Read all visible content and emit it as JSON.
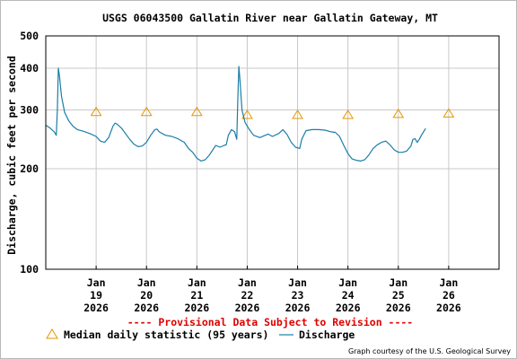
{
  "chart_data": {
    "type": "line",
    "title": "USGS 06043500 Gallatin River near Gallatin Gateway, MT",
    "ylabel": "Discharge, cubic feet per second",
    "xlabel": "",
    "y_scale": "log",
    "ylim": [
      100,
      500
    ],
    "y_ticks": [
      "500",
      "400",
      "300",
      "200",
      "100"
    ],
    "y_tick_values": [
      500,
      400,
      300,
      200,
      100
    ],
    "xlim": [
      "2026-01-18",
      "2026-01-27"
    ],
    "grid": true,
    "x_ticks": [
      {
        "date": "2026-01-19",
        "month": "Jan",
        "day": "19",
        "year": "2026"
      },
      {
        "date": "2026-01-20",
        "month": "Jan",
        "day": "20",
        "year": "2026"
      },
      {
        "date": "2026-01-21",
        "month": "Jan",
        "day": "21",
        "year": "2026"
      },
      {
        "date": "2026-01-22",
        "month": "Jan",
        "day": "22",
        "year": "2026"
      },
      {
        "date": "2026-01-23",
        "month": "Jan",
        "day": "23",
        "year": "2026"
      },
      {
        "date": "2026-01-24",
        "month": "Jan",
        "day": "24",
        "year": "2026"
      },
      {
        "date": "2026-01-25",
        "month": "Jan",
        "day": "25",
        "year": "2026"
      },
      {
        "date": "2026-01-26",
        "month": "Jan",
        "day": "26",
        "year": "2026"
      }
    ],
    "series": [
      {
        "name": "Discharge",
        "color": "#1a7ea6",
        "points": [
          [
            "2026-01-18T00:00",
            270
          ],
          [
            "2026-01-18T02:00",
            265
          ],
          [
            "2026-01-18T04:00",
            258
          ],
          [
            "2026-01-18T05:00",
            252
          ],
          [
            "2026-01-18T05:30",
            300
          ],
          [
            "2026-01-18T06:00",
            400
          ],
          [
            "2026-01-18T06:30",
            380
          ],
          [
            "2026-01-18T07:30",
            330
          ],
          [
            "2026-01-18T09:00",
            295
          ],
          [
            "2026-01-18T11:00",
            278
          ],
          [
            "2026-01-18T13:00",
            268
          ],
          [
            "2026-01-18T15:00",
            262
          ],
          [
            "2026-01-18T18:00",
            259
          ],
          [
            "2026-01-18T21:00",
            255
          ],
          [
            "2026-01-19T00:00",
            250
          ],
          [
            "2026-01-19T02:00",
            242
          ],
          [
            "2026-01-19T04:00",
            240
          ],
          [
            "2026-01-19T06:00",
            248
          ],
          [
            "2026-01-19T08:00",
            268
          ],
          [
            "2026-01-19T09:00",
            274
          ],
          [
            "2026-01-19T10:00",
            272
          ],
          [
            "2026-01-19T12:00",
            265
          ],
          [
            "2026-01-19T14:00",
            255
          ],
          [
            "2026-01-19T16:00",
            245
          ],
          [
            "2026-01-19T18:00",
            237
          ],
          [
            "2026-01-19T20:00",
            233
          ],
          [
            "2026-01-19T22:00",
            234
          ],
          [
            "2026-01-20T00:00",
            240
          ],
          [
            "2026-01-20T02:00",
            252
          ],
          [
            "2026-01-20T04:00",
            262
          ],
          [
            "2026-01-20T05:00",
            263
          ],
          [
            "2026-01-20T06:00",
            258
          ],
          [
            "2026-01-20T09:00",
            252
          ],
          [
            "2026-01-20T12:00",
            250
          ],
          [
            "2026-01-20T15:00",
            246
          ],
          [
            "2026-01-20T18:00",
            240
          ],
          [
            "2026-01-20T20:00",
            230
          ],
          [
            "2026-01-20T22:00",
            224
          ],
          [
            "2026-01-21T00:00",
            215
          ],
          [
            "2026-01-21T02:00",
            211
          ],
          [
            "2026-01-21T04:00",
            213
          ],
          [
            "2026-01-21T06:00",
            220
          ],
          [
            "2026-01-21T09:00",
            235
          ],
          [
            "2026-01-21T11:00",
            232
          ],
          [
            "2026-01-21T13:00",
            235
          ],
          [
            "2026-01-21T14:00",
            236
          ],
          [
            "2026-01-21T15:00",
            252
          ],
          [
            "2026-01-21T16:30",
            262
          ],
          [
            "2026-01-21T18:00",
            258
          ],
          [
            "2026-01-21T19:00",
            245
          ],
          [
            "2026-01-21T19:30",
            320
          ],
          [
            "2026-01-21T20:00",
            405
          ],
          [
            "2026-01-21T20:30",
            370
          ],
          [
            "2026-01-21T21:30",
            300
          ],
          [
            "2026-01-21T23:00",
            275
          ],
          [
            "2026-01-22T01:00",
            262
          ],
          [
            "2026-01-22T03:00",
            252
          ],
          [
            "2026-01-22T06:00",
            248
          ],
          [
            "2026-01-22T08:00",
            251
          ],
          [
            "2026-01-22T10:00",
            254
          ],
          [
            "2026-01-22T12:00",
            250
          ],
          [
            "2026-01-22T15:00",
            255
          ],
          [
            "2026-01-22T17:00",
            262
          ],
          [
            "2026-01-22T19:00",
            253
          ],
          [
            "2026-01-22T21:00",
            240
          ],
          [
            "2026-01-22T23:00",
            232
          ],
          [
            "2026-01-23T01:00",
            230
          ],
          [
            "2026-01-23T02:00",
            245
          ],
          [
            "2026-01-23T04:00",
            260
          ],
          [
            "2026-01-23T07:00",
            262
          ],
          [
            "2026-01-23T10:00",
            262
          ],
          [
            "2026-01-23T13:00",
            261
          ],
          [
            "2026-01-23T16:00",
            258
          ],
          [
            "2026-01-23T18:00",
            257
          ],
          [
            "2026-01-23T20:00",
            250
          ],
          [
            "2026-01-23T22:00",
            235
          ],
          [
            "2026-01-24T00:00",
            222
          ],
          [
            "2026-01-24T02:00",
            214
          ],
          [
            "2026-01-24T04:00",
            212
          ],
          [
            "2026-01-24T06:00",
            211
          ],
          [
            "2026-01-24T08:00",
            213
          ],
          [
            "2026-01-24T10:00",
            220
          ],
          [
            "2026-01-24T12:00",
            230
          ],
          [
            "2026-01-24T14:00",
            236
          ],
          [
            "2026-01-24T16:00",
            240
          ],
          [
            "2026-01-24T18:00",
            242
          ],
          [
            "2026-01-24T20:00",
            236
          ],
          [
            "2026-01-24T22:00",
            228
          ],
          [
            "2026-01-25T00:00",
            224
          ],
          [
            "2026-01-25T02:00",
            224
          ],
          [
            "2026-01-25T04:00",
            226
          ],
          [
            "2026-01-25T06:00",
            234
          ],
          [
            "2026-01-25T07:00",
            245
          ],
          [
            "2026-01-25T08:00",
            246
          ],
          [
            "2026-01-25T09:00",
            240
          ],
          [
            "2026-01-25T10:00",
            245
          ],
          [
            "2026-01-25T11:00",
            252
          ],
          [
            "2026-01-25T12:00",
            258
          ],
          [
            "2026-01-25T13:00",
            264
          ]
        ]
      }
    ],
    "median_statistic": {
      "name": "Median daily statistic (95 years)",
      "color": "#e69500",
      "points": [
        [
          "2026-01-19T00:00",
          296
        ],
        [
          "2026-01-20T00:00",
          296
        ],
        [
          "2026-01-21T00:00",
          296
        ],
        [
          "2026-01-22T00:00",
          290
        ],
        [
          "2026-01-23T00:00",
          290
        ],
        [
          "2026-01-24T00:00",
          290
        ],
        [
          "2026-01-25T00:00",
          292
        ],
        [
          "2026-01-26T00:00",
          293
        ]
      ]
    },
    "provisional_notice": "---- Provisional Data Subject to Revision ----",
    "credit": "Graph courtesy of the U.S. Geological Survey",
    "colors": {
      "grid": "#c8c8c8",
      "notice": "#e00000",
      "background": "#ffffff"
    }
  }
}
